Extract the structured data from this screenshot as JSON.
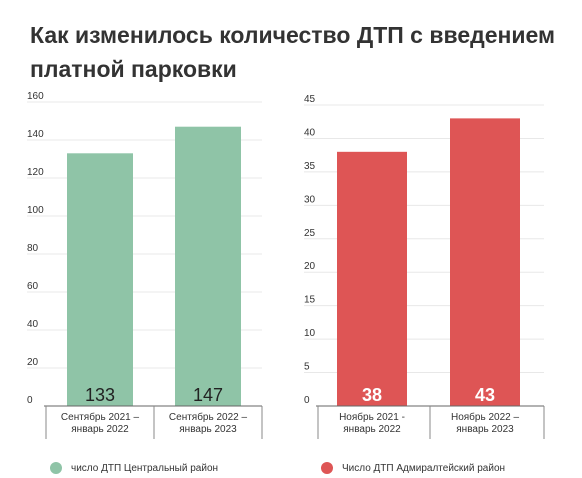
{
  "title": "Как изменилось количество ДТП с введением платной парковки",
  "chart_data": [
    {
      "type": "bar",
      "categories": [
        [
          "Сентябрь 2021 –",
          "январь 2022"
        ],
        [
          "Сентябрь 2022 –",
          "январь 2023"
        ]
      ],
      "series": [
        {
          "name": "число ДТП Центральный район",
          "values": [
            133,
            147
          ]
        }
      ],
      "ylim": [
        0,
        160
      ],
      "yticks": [
        0,
        20,
        40,
        60,
        80,
        100,
        120,
        140,
        160
      ],
      "color": "#8fc4a7",
      "label_color": "#222222",
      "grid": true
    },
    {
      "type": "bar",
      "categories": [
        [
          "Ноябрь 2021 -",
          "январь 2022"
        ],
        [
          "Ноябрь 2022 –",
          "январь 2023"
        ]
      ],
      "series": [
        {
          "name": "Число ДТП Адмиралтейский район",
          "values": [
            38,
            43
          ]
        }
      ],
      "ylim": [
        0,
        45
      ],
      "yticks": [
        0,
        5,
        10,
        15,
        20,
        25,
        30,
        35,
        40,
        45
      ],
      "color": "#de5555",
      "label_color": "#ffffff",
      "grid": true
    }
  ],
  "legend": [
    {
      "label": "число ДТП Центральный район",
      "color": "#8fc4a7"
    },
    {
      "label": "Число ДТП Адмиралтейский район",
      "color": "#de5555"
    }
  ]
}
